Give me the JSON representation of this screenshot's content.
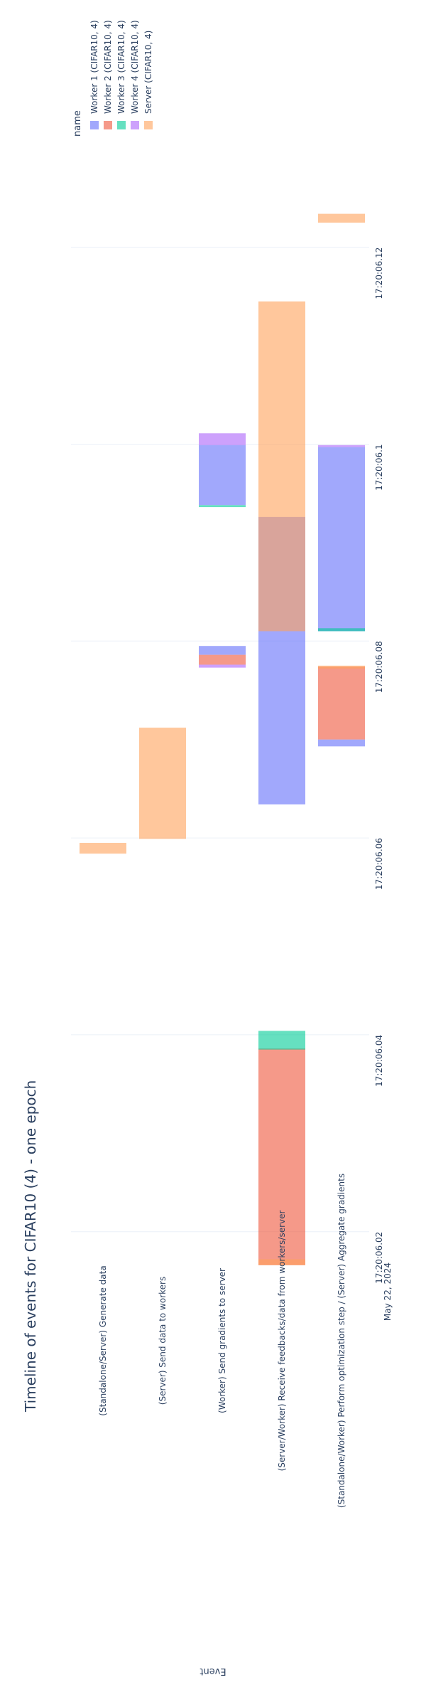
{
  "chart_data": {
    "type": "timeline",
    "title": "Timeline of events for CIFAR10 (4) - one epoch",
    "ylabel": "Event",
    "date_label": "May 22, 2024",
    "legend": {
      "title": "name",
      "placement": "top-right"
    },
    "x_ticks": [
      "17:20:06.02",
      "17:20:06.04",
      "17:20:06.06",
      "17:20:06.08",
      "17:20:06.1",
      "17:20:06.12"
    ],
    "x_tick_values": [
      6.02,
      6.04,
      6.06,
      6.08,
      6.1,
      6.12
    ],
    "x_range": [
      6.0155,
      6.1285
    ],
    "grid": true,
    "categories": [
      "(Standalone/Server) Generate data",
      "(Server) Send data to workers",
      "(Worker) Send gradients to server",
      "(Server/Worker) Receive feedbacks/data from workers/server",
      "(Standalone/Worker) Perform optimization step / (Server) Aggregate gradients"
    ],
    "series": [
      {
        "name": "Worker 1 (CIFAR10, 4)",
        "color": "#636efa",
        "intervals": [
          {
            "category": 2,
            "start": 6.0786,
            "end": 6.0795
          },
          {
            "category": 2,
            "start": 6.0938,
            "end": 6.0999
          },
          {
            "category": 3,
            "start": 6.0634,
            "end": 6.0926
          },
          {
            "category": 4,
            "start": 6.0693,
            "end": 6.07
          },
          {
            "category": 4,
            "start": 6.081,
            "end": 6.0997
          }
        ]
      },
      {
        "name": "Worker 2 (CIFAR10, 4)",
        "color": "#ef553b",
        "intervals": [
          {
            "category": 2,
            "start": 6.0776,
            "end": 6.0786
          },
          {
            "category": 3,
            "start": 6.0166,
            "end": 6.0386
          },
          {
            "category": 4,
            "start": 6.07,
            "end": 6.0774
          }
        ]
      },
      {
        "name": "Worker 3 (CIFAR10, 4)",
        "color": "#00cc96",
        "intervals": [
          {
            "category": 2,
            "start": 6.0936,
            "end": 6.0938
          },
          {
            "category": 3,
            "start": 6.0385,
            "end": 6.0404
          },
          {
            "category": 4,
            "start": 6.081,
            "end": 6.0813
          }
        ]
      },
      {
        "name": "Worker 4 (CIFAR10, 4)",
        "color": "#ab63fa",
        "intervals": [
          {
            "category": 2,
            "start": 6.0773,
            "end": 6.0776
          },
          {
            "category": 2,
            "start": 6.0999,
            "end": 6.1011
          },
          {
            "category": 4,
            "start": 6.0997,
            "end": 6.0999
          }
        ]
      },
      {
        "name": "Server (CIFAR10, 4)",
        "color": "#ffa15a",
        "intervals": [
          {
            "category": 0,
            "start": 6.0584,
            "end": 6.0595
          },
          {
            "category": 1,
            "start": 6.0599,
            "end": 6.0712
          },
          {
            "category": 3,
            "start": 6.0166,
            "end": 6.0172
          },
          {
            "category": 3,
            "start": 6.081,
            "end": 6.1145
          },
          {
            "category": 4,
            "start": 6.0772,
            "end": 6.0775
          },
          {
            "category": 4,
            "start": 6.1225,
            "end": 6.1234
          }
        ]
      }
    ]
  }
}
